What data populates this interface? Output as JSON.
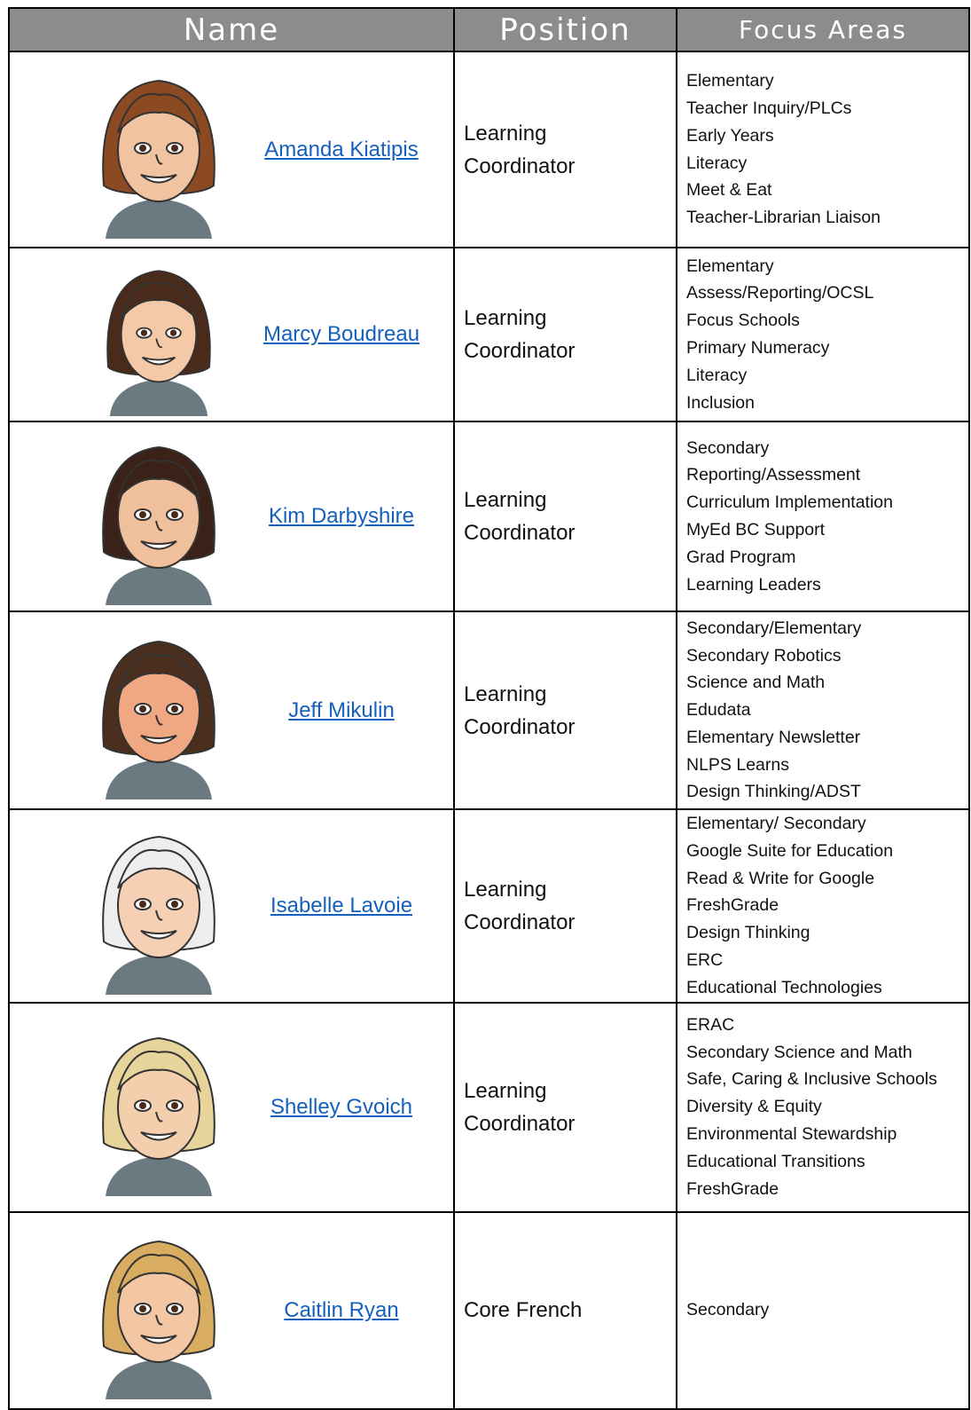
{
  "header": {
    "columns": [
      "Name",
      "Position",
      "Focus Areas"
    ]
  },
  "rows": [
    {
      "name": "Amanda Kiatipis",
      "position": "Learning Coordinator",
      "focus": [
        "Elementary",
        "Teacher Inquiry/PLCs",
        "Early Years",
        "Literacy",
        "Meet & Eat",
        "Teacher-Librarian Liaison"
      ]
    },
    {
      "name": "Marcy Boudreau",
      "position": "Learning Coordinator",
      "focus": [
        "Elementary",
        "Assess/Reporting/OCSL",
        "Focus Schools",
        "Primary Numeracy",
        "Literacy",
        "Inclusion"
      ]
    },
    {
      "name": "Kim Darbyshire",
      "position": "Learning Coordinator",
      "focus": [
        "Secondary",
        "Reporting/Assessment",
        "Curriculum Implementation",
        "MyEd BC Support",
        "Grad Program",
        "Learning Leaders"
      ]
    },
    {
      "name": "Jeff Mikulin",
      "position": "Learning Coordinator",
      "focus": [
        "Secondary/Elementary",
        "Secondary Robotics",
        "Science and Math",
        "Edudata",
        "Elementary Newsletter",
        "NLPS Learns",
        "Design Thinking/ADST"
      ]
    },
    {
      "name": "Isabelle Lavoie",
      "position": "Learning Coordinator",
      "focus": [
        "Elementary/ Secondary",
        "Google Suite for Education",
        "Read & Write for Google",
        "FreshGrade",
        "Design Thinking",
        "ERC",
        "Educational Technologies"
      ]
    },
    {
      "name": "Shelley Gvoich",
      "position": "Learning Coordinator",
      "focus": [
        "ERAC",
        "Secondary Science and Math",
        "Safe, Caring & Inclusive Schools",
        "Diversity & Equity",
        "Environmental Stewardship",
        "Educational Transitions",
        "FreshGrade"
      ]
    },
    {
      "name": "Caitlin Ryan",
      "position": "Core French",
      "focus": [
        "Secondary"
      ]
    }
  ]
}
